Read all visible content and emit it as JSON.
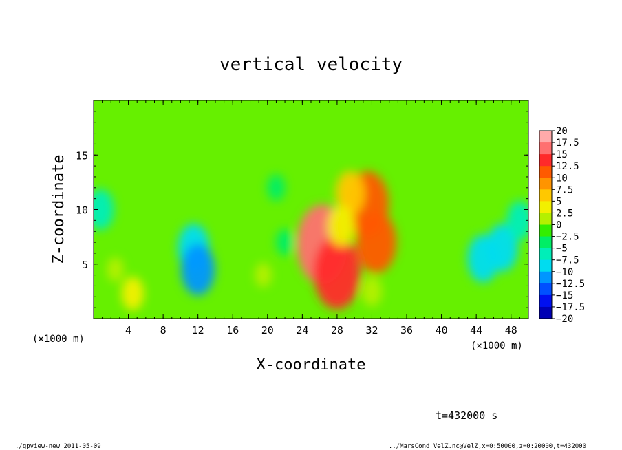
{
  "chart_data": {
    "type": "heatmap",
    "title": "vertical velocity",
    "xlabel": "X-coordinate",
    "ylabel": "Z-coordinate",
    "x_unit_left": "(×1000 m)",
    "x_unit_right": "(×1000 m)",
    "xlim": [
      0,
      50
    ],
    "ylim": [
      0,
      20
    ],
    "x_ticks": [
      "4",
      "8",
      "12",
      "16",
      "20",
      "24",
      "28",
      "32",
      "36",
      "40",
      "44",
      "48"
    ],
    "y_ticks": [
      "5",
      "10",
      "15"
    ],
    "colorbar": {
      "labels": [
        "20",
        "17.5",
        "15",
        "12.5",
        "10",
        "7.5",
        "5",
        "2.5",
        "0",
        "−2.5",
        "−5",
        "−7.5",
        "−10",
        "−12.5",
        "−15",
        "−17.5",
        "−20"
      ],
      "colors": [
        "#ffaaaa",
        "#ff7070",
        "#ff2a2a",
        "#ff5a00",
        "#ff9400",
        "#ffc800",
        "#f2f000",
        "#b4f000",
        "#33ee00",
        "#00ee66",
        "#00eeb8",
        "#00dcf0",
        "#0096ff",
        "#0050ff",
        "#0010f0",
        "#0000b4",
        "#5a00b4"
      ]
    },
    "field_features": [
      {
        "x": 26.3,
        "z": 6.8,
        "value": 17
      },
      {
        "x": 28.0,
        "z": 4.2,
        "value": 15
      },
      {
        "x": 31.5,
        "z": 10.5,
        "value": 13
      },
      {
        "x": 32.5,
        "z": 7.0,
        "value": 12
      },
      {
        "x": 29.5,
        "z": 11.5,
        "value": 7
      },
      {
        "x": 28.5,
        "z": 8.5,
        "value": 6
      },
      {
        "x": 4.5,
        "z": 2.3,
        "value": 4
      },
      {
        "x": 2.5,
        "z": 4.5,
        "value": 1.5
      },
      {
        "x": 19.5,
        "z": 4.0,
        "value": 1.5
      },
      {
        "x": 32.0,
        "z": 2.5,
        "value": 3
      },
      {
        "x": 11.5,
        "z": 6.5,
        "value": -8
      },
      {
        "x": 12.0,
        "z": 4.5,
        "value": -9
      },
      {
        "x": 44.8,
        "z": 5.5,
        "value": -8
      },
      {
        "x": 47.0,
        "z": 6.5,
        "value": -8
      },
      {
        "x": 0.8,
        "z": 10.0,
        "value": -6
      },
      {
        "x": 49.0,
        "z": 9.0,
        "value": -5.5
      },
      {
        "x": 21.0,
        "z": 12.0,
        "value": -2
      },
      {
        "x": 22.0,
        "z": 7.0,
        "value": -2
      }
    ]
  },
  "time_label": "t=432000 s",
  "footer_left": "./gpview-new  2011-05-09",
  "footer_right": "../MarsCond_VelZ.nc@VelZ,x=0:50000,z=0:20000,t=432000"
}
